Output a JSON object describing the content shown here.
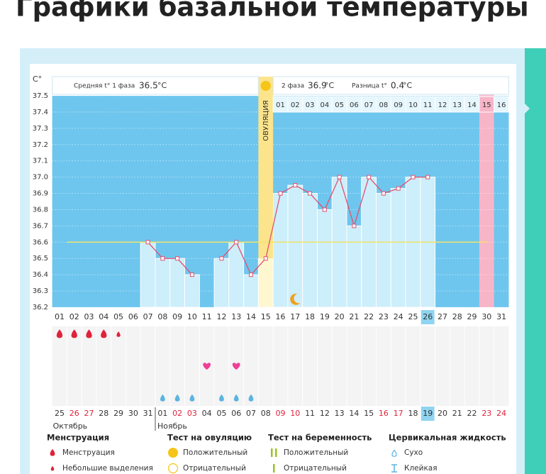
{
  "page_title": "Графики базальной температуры",
  "chart_data": {
    "type": "line",
    "y_unit": "C°",
    "categories": [
      "01",
      "02",
      "03",
      "04",
      "05",
      "06",
      "07",
      "08",
      "09",
      "10",
      "11",
      "12",
      "13",
      "14",
      "15",
      "16",
      "17",
      "18",
      "19",
      "20",
      "21",
      "22",
      "23",
      "24",
      "25",
      "26",
      "27",
      "28",
      "29",
      "30",
      "31"
    ],
    "values": [
      null,
      null,
      null,
      null,
      null,
      null,
      36.6,
      36.5,
      36.5,
      36.4,
      null,
      36.5,
      36.6,
      36.4,
      36.5,
      36.9,
      36.95,
      36.9,
      36.8,
      37.0,
      36.7,
      37.0,
      36.9,
      36.93,
      37.0,
      37.0,
      null,
      null,
      null,
      null,
      null
    ],
    "color": "#e2506f",
    "ylim": [
      36.2,
      37.5
    ],
    "yticks": [
      36.2,
      36.3,
      36.4,
      36.5,
      36.6,
      36.7,
      36.8,
      36.9,
      {
        "value": 37.0,
        "label": "37.0"
      },
      37.1,
      37.2,
      37.3,
      37.4,
      37.5
    ],
    "grid": true,
    "coverline": 36.6,
    "ovulation_day": "15",
    "ovulation_label": "ОВУЛЯЦИЯ",
    "highlight_day": "30",
    "today": "26",
    "header": {
      "phase1_label": "Средняя t° 1 фаза",
      "phase1_value": 36.5,
      "phase2_label": "2 фаза",
      "phase2_value": 36.9,
      "diff_label": "Разница t°",
      "diff_value": 0.4,
      "unit": "°C"
    },
    "phase2_days": [
      "01",
      "02",
      "03",
      "04",
      "05",
      "06",
      "07",
      "08",
      "09",
      "10",
      "11",
      "12",
      "13",
      "14",
      "15",
      "16"
    ]
  },
  "day_icons": {
    "menstruation_days": [
      "01",
      "02",
      "03",
      "04"
    ],
    "light_discharge_days": [
      "05"
    ],
    "intercourse_days": [
      "11",
      "13"
    ],
    "fluid_days": [
      "08",
      "09",
      "10",
      "12",
      "13",
      "14"
    ]
  },
  "dates": [
    {
      "text": "25"
    },
    {
      "text": "26",
      "red": true
    },
    {
      "text": "27",
      "red": true
    },
    {
      "text": "28"
    },
    {
      "text": "29"
    },
    {
      "text": "30"
    },
    {
      "text": "31"
    },
    {
      "text": "01",
      "month_start": true
    },
    {
      "text": "02",
      "red": true
    },
    {
      "text": "03",
      "red": true
    },
    {
      "text": "04"
    },
    {
      "text": "05"
    },
    {
      "text": "06"
    },
    {
      "text": "07"
    },
    {
      "text": "08"
    },
    {
      "text": "09",
      "red": true
    },
    {
      "text": "10",
      "red": true
    },
    {
      "text": "11"
    },
    {
      "text": "12"
    },
    {
      "text": "13"
    },
    {
      "text": "14"
    },
    {
      "text": "15"
    },
    {
      "text": "16",
      "red": true
    },
    {
      "text": "17",
      "red": true
    },
    {
      "text": "18"
    },
    {
      "text": "19",
      "highlight": true
    },
    {
      "text": "20"
    },
    {
      "text": "21"
    },
    {
      "text": "22"
    },
    {
      "text": "23",
      "red": true
    },
    {
      "text": "24",
      "red": true
    }
  ],
  "months": [
    "Октябрь",
    "Ноябрь"
  ],
  "legend": [
    {
      "title": "Менструация",
      "items": [
        "Менструация",
        "Небольшие выделения"
      ]
    },
    {
      "title": "Тест на овуляцию",
      "items": [
        "Положительный",
        "Отрицательный"
      ]
    },
    {
      "title": "Тест на беременность",
      "items": [
        "Положительный",
        "Отрицательный"
      ]
    },
    {
      "title": "Цервикальная жидкость",
      "items": [
        "Сухо",
        "Клейкая"
      ]
    }
  ]
}
